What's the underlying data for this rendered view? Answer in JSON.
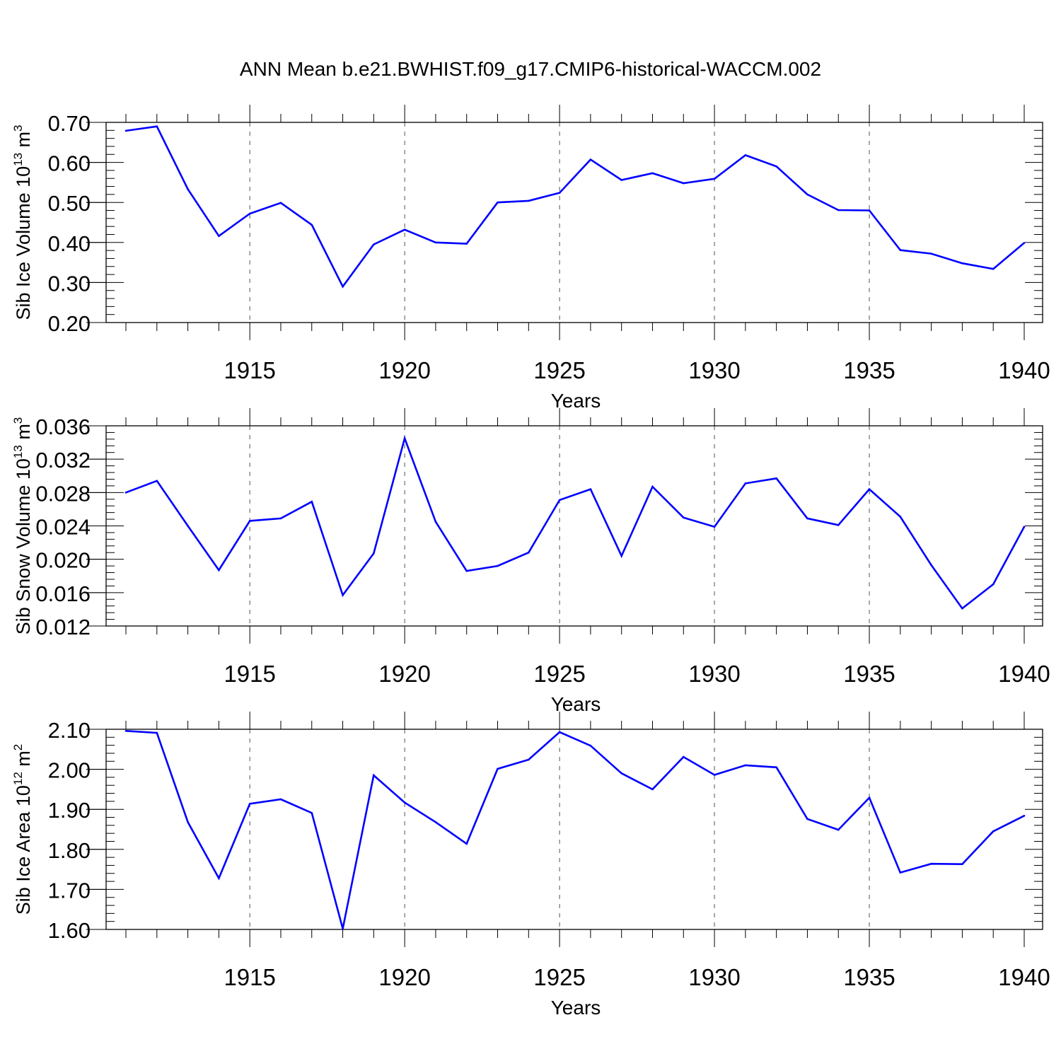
{
  "title": "ANN Mean b.e21.BWHIST.f09_g17.CMIP6-historical-WACCM.002",
  "line_color": "#0000ff",
  "chart_data": [
    {
      "type": "line",
      "ylabel": "Sib Ice Volume 10",
      "ylabel_exp": "13",
      "ylabel_unit": " m",
      "ylabel_unit_exp": "3",
      "xlabel": "Years",
      "xlim": [
        1911,
        1940
      ],
      "ylim": [
        0.2,
        0.7
      ],
      "yticks": [
        0.2,
        0.3,
        0.4,
        0.5,
        0.6,
        0.7
      ],
      "ytick_labels": [
        "0.20",
        "0.30",
        "0.40",
        "0.50",
        "0.60",
        "0.70"
      ],
      "xticks": [
        1915,
        1920,
        1925,
        1930,
        1935,
        1940
      ],
      "xtick_labels": [
        "1915",
        "1920",
        "1925",
        "1930",
        "1935",
        "1940"
      ],
      "grid": "vertical dashed at major x ticks",
      "x": [
        1911,
        1912,
        1913,
        1914,
        1915,
        1916,
        1917,
        1918,
        1919,
        1920,
        1921,
        1922,
        1923,
        1924,
        1925,
        1926,
        1927,
        1928,
        1929,
        1930,
        1931,
        1932,
        1933,
        1934,
        1935,
        1936,
        1937,
        1938,
        1939,
        1940
      ],
      "values": [
        0.679,
        0.69,
        0.533,
        0.416,
        0.472,
        0.499,
        0.444,
        0.29,
        0.395,
        0.432,
        0.4,
        0.397,
        0.5,
        0.504,
        0.524,
        0.607,
        0.556,
        0.573,
        0.548,
        0.559,
        0.618,
        0.59,
        0.52,
        0.481,
        0.48,
        0.381,
        0.372,
        0.348,
        0.334,
        0.399
      ]
    },
    {
      "type": "line",
      "ylabel": "Sib Snow Volume 10",
      "ylabel_exp": "13",
      "ylabel_unit": " m",
      "ylabel_unit_exp": "3",
      "xlabel": "Years",
      "xlim": [
        1911,
        1940
      ],
      "ylim": [
        0.012,
        0.036
      ],
      "yticks": [
        0.012,
        0.016,
        0.02,
        0.024,
        0.028,
        0.032,
        0.036
      ],
      "ytick_labels": [
        "0.012",
        "0.016",
        "0.020",
        "0.024",
        "0.028",
        "0.032",
        "0.036"
      ],
      "xticks": [
        1915,
        1920,
        1925,
        1930,
        1935,
        1940
      ],
      "xtick_labels": [
        "1915",
        "1920",
        "1925",
        "1930",
        "1935",
        "1940"
      ],
      "grid": "vertical dashed at major x ticks",
      "x": [
        1911,
        1912,
        1913,
        1914,
        1915,
        1916,
        1917,
        1918,
        1919,
        1920,
        1921,
        1922,
        1923,
        1924,
        1925,
        1926,
        1927,
        1928,
        1929,
        1930,
        1931,
        1932,
        1933,
        1934,
        1935,
        1936,
        1937,
        1938,
        1939,
        1940
      ],
      "values": [
        0.028,
        0.0294,
        0.024,
        0.0187,
        0.0246,
        0.0249,
        0.0269,
        0.0157,
        0.0207,
        0.0345,
        0.0245,
        0.0186,
        0.0192,
        0.0208,
        0.0271,
        0.0284,
        0.0204,
        0.0287,
        0.025,
        0.0239,
        0.0291,
        0.0297,
        0.0249,
        0.0241,
        0.0284,
        0.0251,
        0.0193,
        0.0141,
        0.017,
        0.0239
      ]
    },
    {
      "type": "line",
      "ylabel": "Sib Ice Area 10",
      "ylabel_exp": "12",
      "ylabel_unit": " m",
      "ylabel_unit_exp": "2",
      "xlabel": "Years",
      "xlim": [
        1911,
        1940
      ],
      "ylim": [
        1.6,
        2.1
      ],
      "yticks": [
        1.6,
        1.7,
        1.8,
        1.9,
        2.0,
        2.1
      ],
      "ytick_labels": [
        "1.60",
        "1.70",
        "1.80",
        "1.90",
        "2.00",
        "2.10"
      ],
      "xticks": [
        1915,
        1920,
        1925,
        1930,
        1935,
        1940
      ],
      "xtick_labels": [
        "1915",
        "1920",
        "1925",
        "1930",
        "1935",
        "1940"
      ],
      "grid": "vertical dashed at major x ticks",
      "x": [
        1911,
        1912,
        1913,
        1914,
        1915,
        1916,
        1917,
        1918,
        1919,
        1920,
        1921,
        1922,
        1923,
        1924,
        1925,
        1926,
        1927,
        1928,
        1929,
        1930,
        1931,
        1932,
        1933,
        1934,
        1935,
        1936,
        1937,
        1938,
        1939,
        1940
      ],
      "values": [
        2.096,
        2.091,
        1.868,
        1.728,
        1.914,
        1.925,
        1.891,
        1.602,
        1.985,
        1.917,
        1.868,
        1.814,
        2.001,
        2.024,
        2.093,
        2.059,
        1.99,
        1.95,
        2.031,
        1.986,
        2.01,
        2.005,
        1.876,
        1.849,
        1.929,
        1.742,
        1.764,
        1.763,
        1.845,
        1.884
      ]
    }
  ]
}
